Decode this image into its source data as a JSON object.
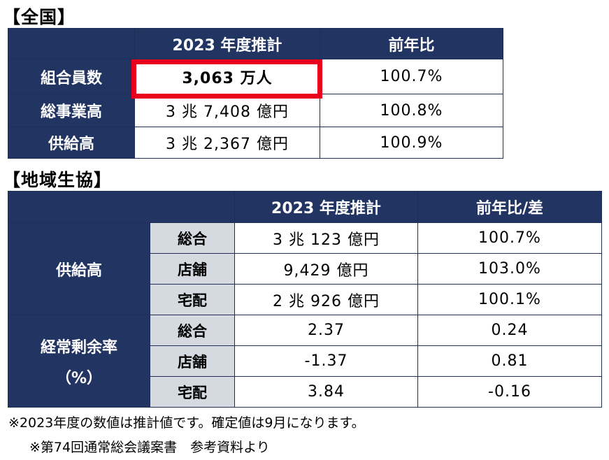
{
  "national": {
    "title": "【全国】",
    "header": {
      "col1": "",
      "col2": "2023 年度推計",
      "col3": "前年比"
    },
    "rows": [
      {
        "label": "組合員数",
        "value": "3,063 万人",
        "ratio": "100.7%"
      },
      {
        "label": "総事業高",
        "value": "3 兆 7,408 億円",
        "ratio": "100.8%"
      },
      {
        "label": "供給高",
        "value": "3 兆 2,367 億円",
        "ratio": "100.9%"
      }
    ]
  },
  "regional": {
    "title": "【地域生協】",
    "header": {
      "col1": "",
      "col2": "2023 年度推計",
      "col3": "前年比/差"
    },
    "supply": {
      "label": "供給高",
      "rows": [
        {
          "sub": "総合",
          "value": "3 兆 123 億円",
          "ratio": "100.7%"
        },
        {
          "sub": "店舗",
          "value": "9,429 億円",
          "ratio": "103.0%"
        },
        {
          "sub": "宅配",
          "value": "2 兆 926 億円",
          "ratio": "100.1%"
        }
      ]
    },
    "margin": {
      "label": "経常剰余率",
      "label2": "（%）",
      "rows": [
        {
          "sub": "総合",
          "value": "2.37",
          "ratio": "0.24"
        },
        {
          "sub": "店舗",
          "value": "-1.37",
          "ratio": "0.81"
        },
        {
          "sub": "宅配",
          "value": "3.84",
          "ratio": "-0.16"
        }
      ]
    }
  },
  "notes": {
    "line1": "※2023年度の数値は推計値です。確定値は9月になります。",
    "line2": "※第74回通常総会議案書　参考資料より"
  },
  "colors": {
    "header_bg": "#223462",
    "sub_bg": "#d5d9e0",
    "highlight": "#e8001c"
  }
}
